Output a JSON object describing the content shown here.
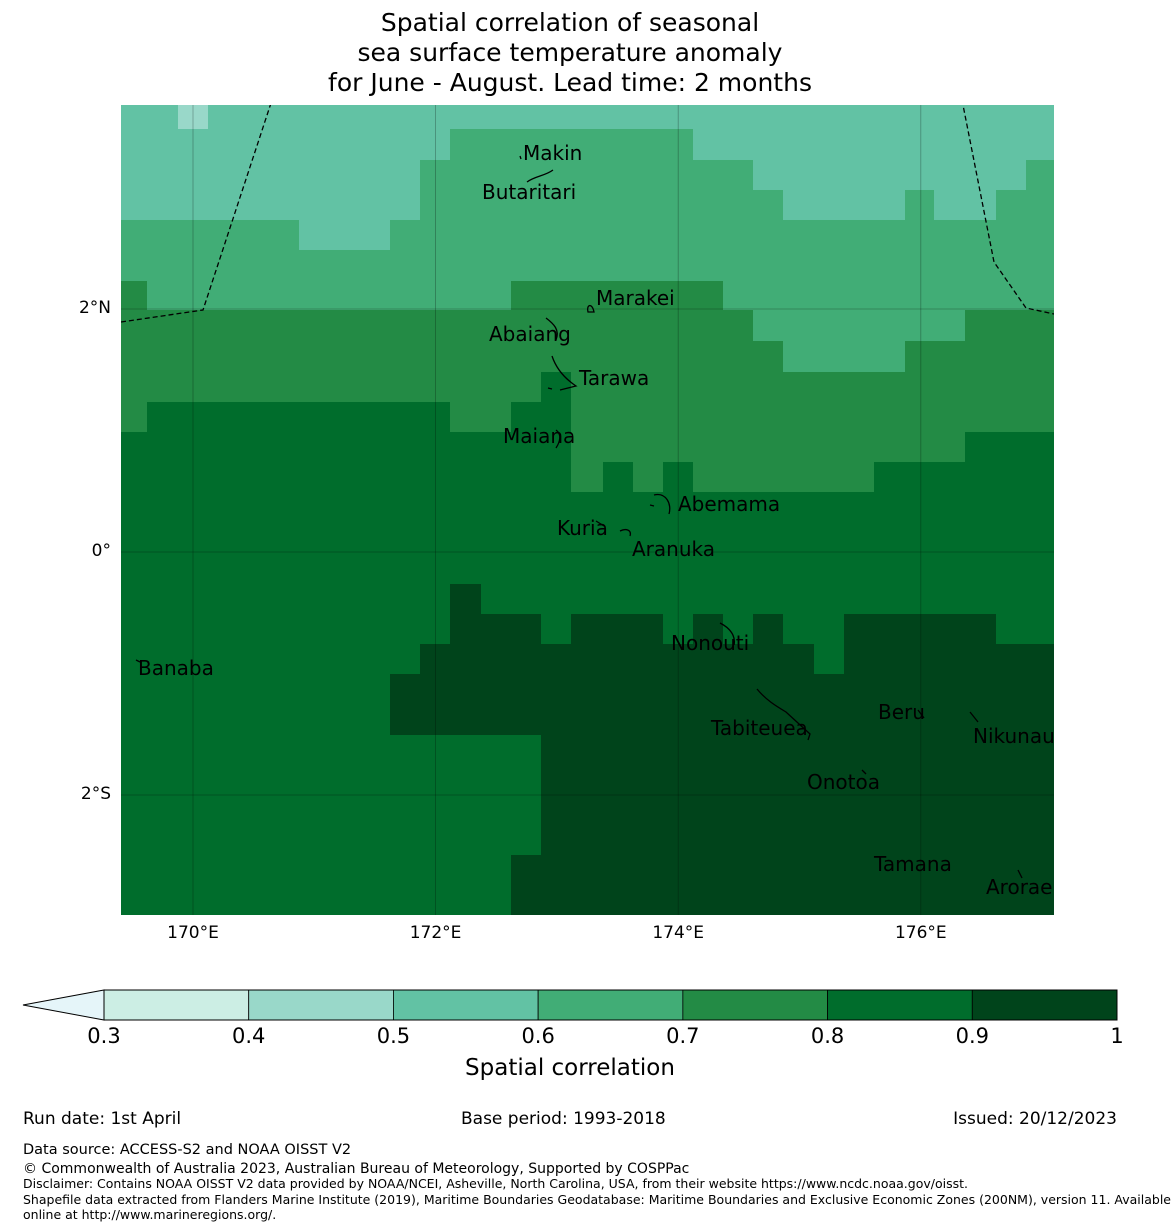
{
  "title": {
    "line1": "Spatial correlation of seasonal",
    "line2": "sea surface temperature anomaly",
    "line3": "for June - August. Lead time: 2 months"
  },
  "map": {
    "lon_range": [
      169.4,
      177.1
    ],
    "lat_range": [
      -3.0,
      3.7
    ],
    "y_ticks": [
      {
        "value": 2,
        "label": "2°N"
      },
      {
        "value": 0,
        "label": "0°"
      },
      {
        "value": -2,
        "label": "2°S"
      }
    ],
    "x_ticks": [
      {
        "value": 170,
        "label": "170°E"
      },
      {
        "value": 172,
        "label": "172°E"
      },
      {
        "value": 174,
        "label": "174°E"
      },
      {
        "value": 176,
        "label": "176°E"
      }
    ],
    "gridlines": true,
    "islands": [
      {
        "name": "Makin",
        "lon": 173.0,
        "lat": 3.3
      },
      {
        "name": "Butaritari",
        "lon": 172.9,
        "lat": 3.1
      },
      {
        "name": "Marakei",
        "lon": 173.3,
        "lat": 2.0
      },
      {
        "name": "Abaiang",
        "lon": 172.95,
        "lat": 1.8
      },
      {
        "name": "Tarawa",
        "lon": 173.05,
        "lat": 1.4
      },
      {
        "name": "Maiana",
        "lon": 173.0,
        "lat": 0.9
      },
      {
        "name": "Abemama",
        "lon": 173.9,
        "lat": 0.4
      },
      {
        "name": "Kuria",
        "lon": 173.4,
        "lat": 0.23
      },
      {
        "name": "Aranuka",
        "lon": 173.6,
        "lat": 0.18
      },
      {
        "name": "Nonouti",
        "lon": 174.4,
        "lat": -0.6
      },
      {
        "name": "Banaba",
        "lon": 169.55,
        "lat": -0.87
      },
      {
        "name": "Beru",
        "lon": 176.0,
        "lat": -1.33
      },
      {
        "name": "Tabiteuea",
        "lon": 174.9,
        "lat": -1.3
      },
      {
        "name": "Nikunau",
        "lon": 176.45,
        "lat": -1.36
      },
      {
        "name": "Onotoa",
        "lon": 175.55,
        "lat": -1.8
      },
      {
        "name": "Tamana",
        "lon": 175.98,
        "lat": -2.5
      },
      {
        "name": "Arorae",
        "lon": 176.82,
        "lat": -2.65
      }
    ]
  },
  "colorbar": {
    "title": "Spatial correlation",
    "ticks": [
      "0.3",
      "0.4",
      "0.5",
      "0.6",
      "0.7",
      "0.8",
      "0.9",
      "1"
    ],
    "bins": [
      {
        "min": 0.3,
        "max": 0.4,
        "color": "#cceee4"
      },
      {
        "min": 0.4,
        "max": 0.5,
        "color": "#99d8c9"
      },
      {
        "min": 0.5,
        "max": 0.6,
        "color": "#62c2a4"
      },
      {
        "min": 0.6,
        "max": 0.7,
        "color": "#41ad76"
      },
      {
        "min": 0.7,
        "max": 0.8,
        "color": "#238b45"
      },
      {
        "min": 0.8,
        "max": 0.9,
        "color": "#006d2c"
      },
      {
        "min": 0.9,
        "max": 1.0,
        "color": "#00441b"
      }
    ],
    "under_color": "#e5f5f9"
  },
  "footer": {
    "run_date": "Run date: 1st April",
    "base_period": "Base period: 1993-2018",
    "issued": "Issued: 20/12/2023",
    "data_source": "Data source: ACCESS-S2 and NOAA OISST V2",
    "copyright": "© Commonwealth of Australia 2023, Australian Bureau of Meteorology, Supported by COSPPac",
    "disclaimer": "Disclaimer: Contains NOAA OISST V2 data provided by NOAA/NCEI, Asheville, North Carolina, USA, from their website https://www.ncdc.noaa.gov/oisst.",
    "shapefile_1": "Shapefile data extracted from Flanders Marine Institute (2019), Maritime Boundaries Geodatabase: Maritime Boundaries and Exclusive Economic Zones (200NM), version 11. Available",
    "shapefile_2": "online at http://www.marineregions.org/."
  }
}
